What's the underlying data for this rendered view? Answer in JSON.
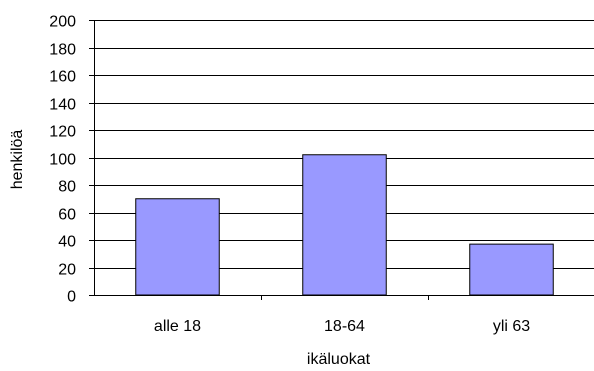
{
  "chart_data": {
    "type": "bar",
    "categories": [
      "alle 18",
      "18-64",
      "yli 63"
    ],
    "values": [
      70,
      102,
      37
    ],
    "xlabel": "ikäluokat",
    "ylabel": "henkilöä",
    "ylim": [
      0,
      200
    ],
    "yticks": [
      "0",
      "20",
      "40",
      "60",
      "80",
      "100",
      "120",
      "140",
      "160",
      "180",
      "200"
    ],
    "grid": true,
    "legend": "none",
    "colors": {
      "bar_fill": "#9999FF",
      "bar_stroke": "#000000",
      "grid": "#000000",
      "axis": "#000000"
    }
  }
}
